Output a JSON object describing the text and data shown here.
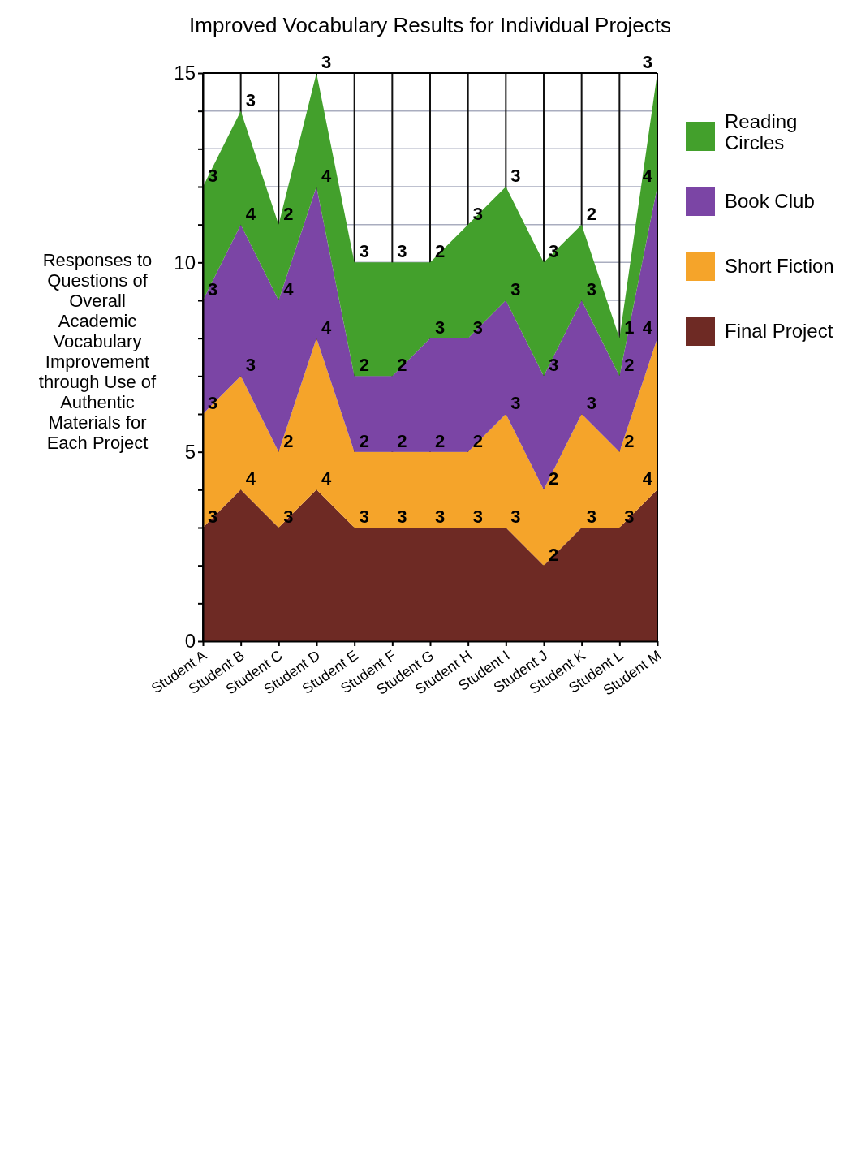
{
  "chart_data": {
    "type": "area",
    "stacked": true,
    "title": "Improved Vocabulary  Results for Individual Projects",
    "ylabel": "Responses to Questions of Overall Academic Vocabulary Improvement through Use of Authentic Materials for Each Project",
    "categories": [
      "Student A",
      "Student B",
      "Student C",
      "Student D",
      "Student E",
      "Student F",
      "Student G",
      "Student H",
      "Student I",
      "Student J",
      "Student K",
      "Student L",
      "Student M"
    ],
    "series": [
      {
        "name": "Final Project",
        "color": "#6e2a24",
        "values": [
          3,
          4,
          3,
          4,
          3,
          3,
          3,
          3,
          3,
          2,
          3,
          3,
          4
        ]
      },
      {
        "name": "Short Fiction",
        "color": "#f5a42a",
        "values": [
          3,
          3,
          2,
          4,
          2,
          2,
          2,
          2,
          3,
          2,
          3,
          2,
          4
        ]
      },
      {
        "name": "Book Club",
        "color": "#7b45a5",
        "values": [
          3,
          4,
          4,
          4,
          2,
          2,
          3,
          3,
          3,
          3,
          3,
          2,
          4
        ]
      },
      {
        "name": "Reading Circles",
        "color": "#43a02c",
        "values": [
          3,
          3,
          2,
          3,
          3,
          3,
          2,
          3,
          3,
          3,
          2,
          1,
          3
        ]
      }
    ],
    "ylim": [
      0,
      15
    ],
    "yticks": [
      0,
      {
        "value": 1,
        "label": null
      },
      {
        "value": 2,
        "label": null
      },
      {
        "value": 3,
        "label": null
      },
      {
        "value": 4,
        "label": null
      },
      5,
      {
        "value": 6,
        "label": null
      },
      {
        "value": 7,
        "label": null
      },
      {
        "value": 8,
        "label": null
      },
      {
        "value": 9,
        "label": null
      },
      10,
      {
        "value": 11,
        "label": null
      },
      {
        "value": 12,
        "label": null
      },
      {
        "value": 13,
        "label": null
      },
      {
        "value": 14,
        "label": null
      },
      15
    ],
    "grid": true,
    "legend": "right",
    "data_labels": true
  }
}
